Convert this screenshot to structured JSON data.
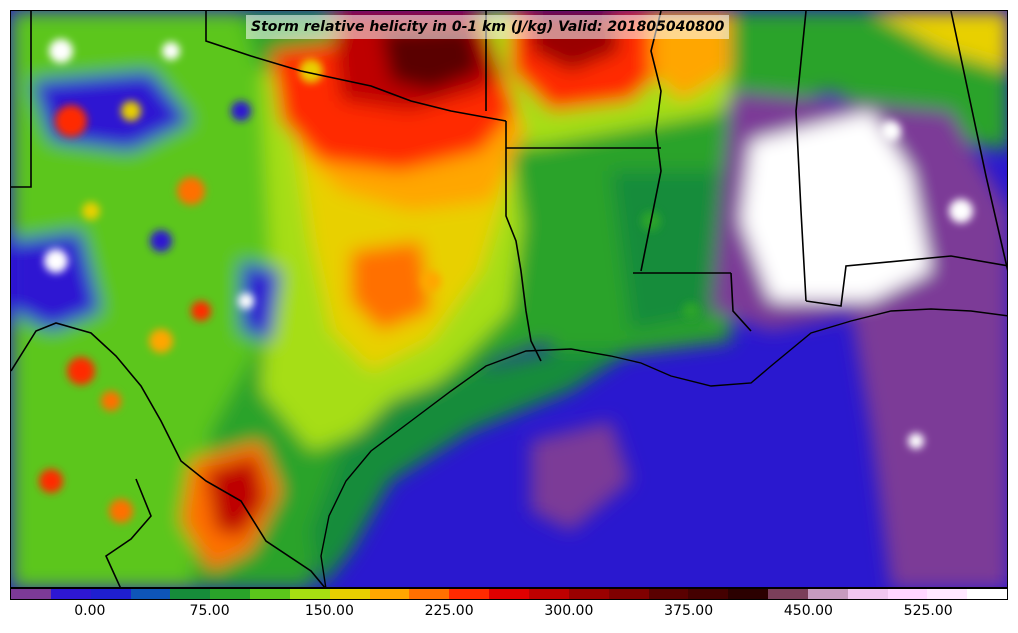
{
  "title": "Storm relative helicity in 0-1 km (J/kg) Valid: 201805040800",
  "map": {
    "field": "storm relative helicity 0-1 km",
    "units": "J/kg",
    "valid": "201805040800",
    "region": "Texas, Louisiana, Gulf of Mexico, Mississippi, Alabama",
    "boundary_color": "#000000"
  },
  "colorbar": {
    "levels": [
      -50,
      -25,
      0,
      25,
      50,
      75,
      100,
      125,
      150,
      175,
      200,
      225,
      250,
      275,
      300,
      325,
      350,
      375,
      400,
      425,
      450,
      475,
      500,
      525,
      550,
      575
    ],
    "colors": [
      "#7c3a97",
      "#2e17d2",
      "#1f1fd0",
      "#0e55b8",
      "#168c3a",
      "#2aa32a",
      "#5bc61b",
      "#a6de12",
      "#e8d000",
      "#ffa600",
      "#ff7000",
      "#ff2a00",
      "#e00000",
      "#be0000",
      "#9a0000",
      "#800000",
      "#5a0000",
      "#440000",
      "#2b0000",
      "#7b3f5a",
      "#c79bbf",
      "#f1c6f0",
      "#ffd6ff",
      "#ffe8ff",
      "#ffffff"
    ],
    "tick_labels": [
      "0.00",
      "75.00",
      "150.00",
      "225.00",
      "300.00",
      "375.00",
      "450.00",
      "525.00"
    ],
    "tick_values": [
      0,
      75,
      150,
      225,
      300,
      375,
      450,
      525
    ]
  }
}
